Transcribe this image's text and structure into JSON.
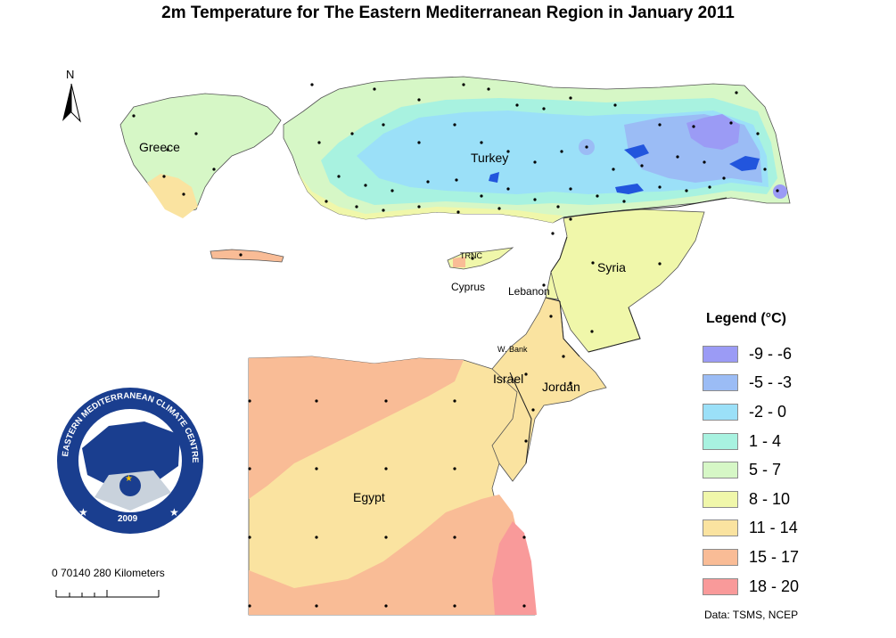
{
  "title": "2m Temperature for The Eastern Mediterranean Region in January 2011",
  "north_label": "N",
  "places": {
    "greece": "Greece",
    "turkey": "Turkey",
    "trnc": "TRNC",
    "cyprus": "Cyprus",
    "syria": "Syria",
    "lebanon": "Lebanon",
    "w_bank": "W. Bank",
    "israel": "Israel",
    "jordan": "Jordan",
    "egypt": "Egypt"
  },
  "legend": {
    "title": "Legend (°C)",
    "items": [
      {
        "label": "-9 - -6",
        "color": "#9b9bf5"
      },
      {
        "label": "-5 - -3",
        "color": "#9bbcf5"
      },
      {
        "label": "-2 - 0",
        "color": "#9be0f8"
      },
      {
        "label": "1 - 4",
        "color": "#a8f2e0"
      },
      {
        "label": "5 - 7",
        "color": "#d6f7c6"
      },
      {
        "label": "8 - 10",
        "color": "#f0f7aa"
      },
      {
        "label": "11 - 14",
        "color": "#fae3a0"
      },
      {
        "label": "15 - 17",
        "color": "#f9bc96"
      },
      {
        "label": "18 - 20",
        "color": "#f99a9a"
      }
    ]
  },
  "scale_bar": {
    "text": "0  70140    280 Kilometers"
  },
  "data_source": "Data:  TSMS, NCEP",
  "logo": {
    "top_text": "EASTERN MEDITERRANEAN CLIMATE CENTRE",
    "year": "2009"
  }
}
